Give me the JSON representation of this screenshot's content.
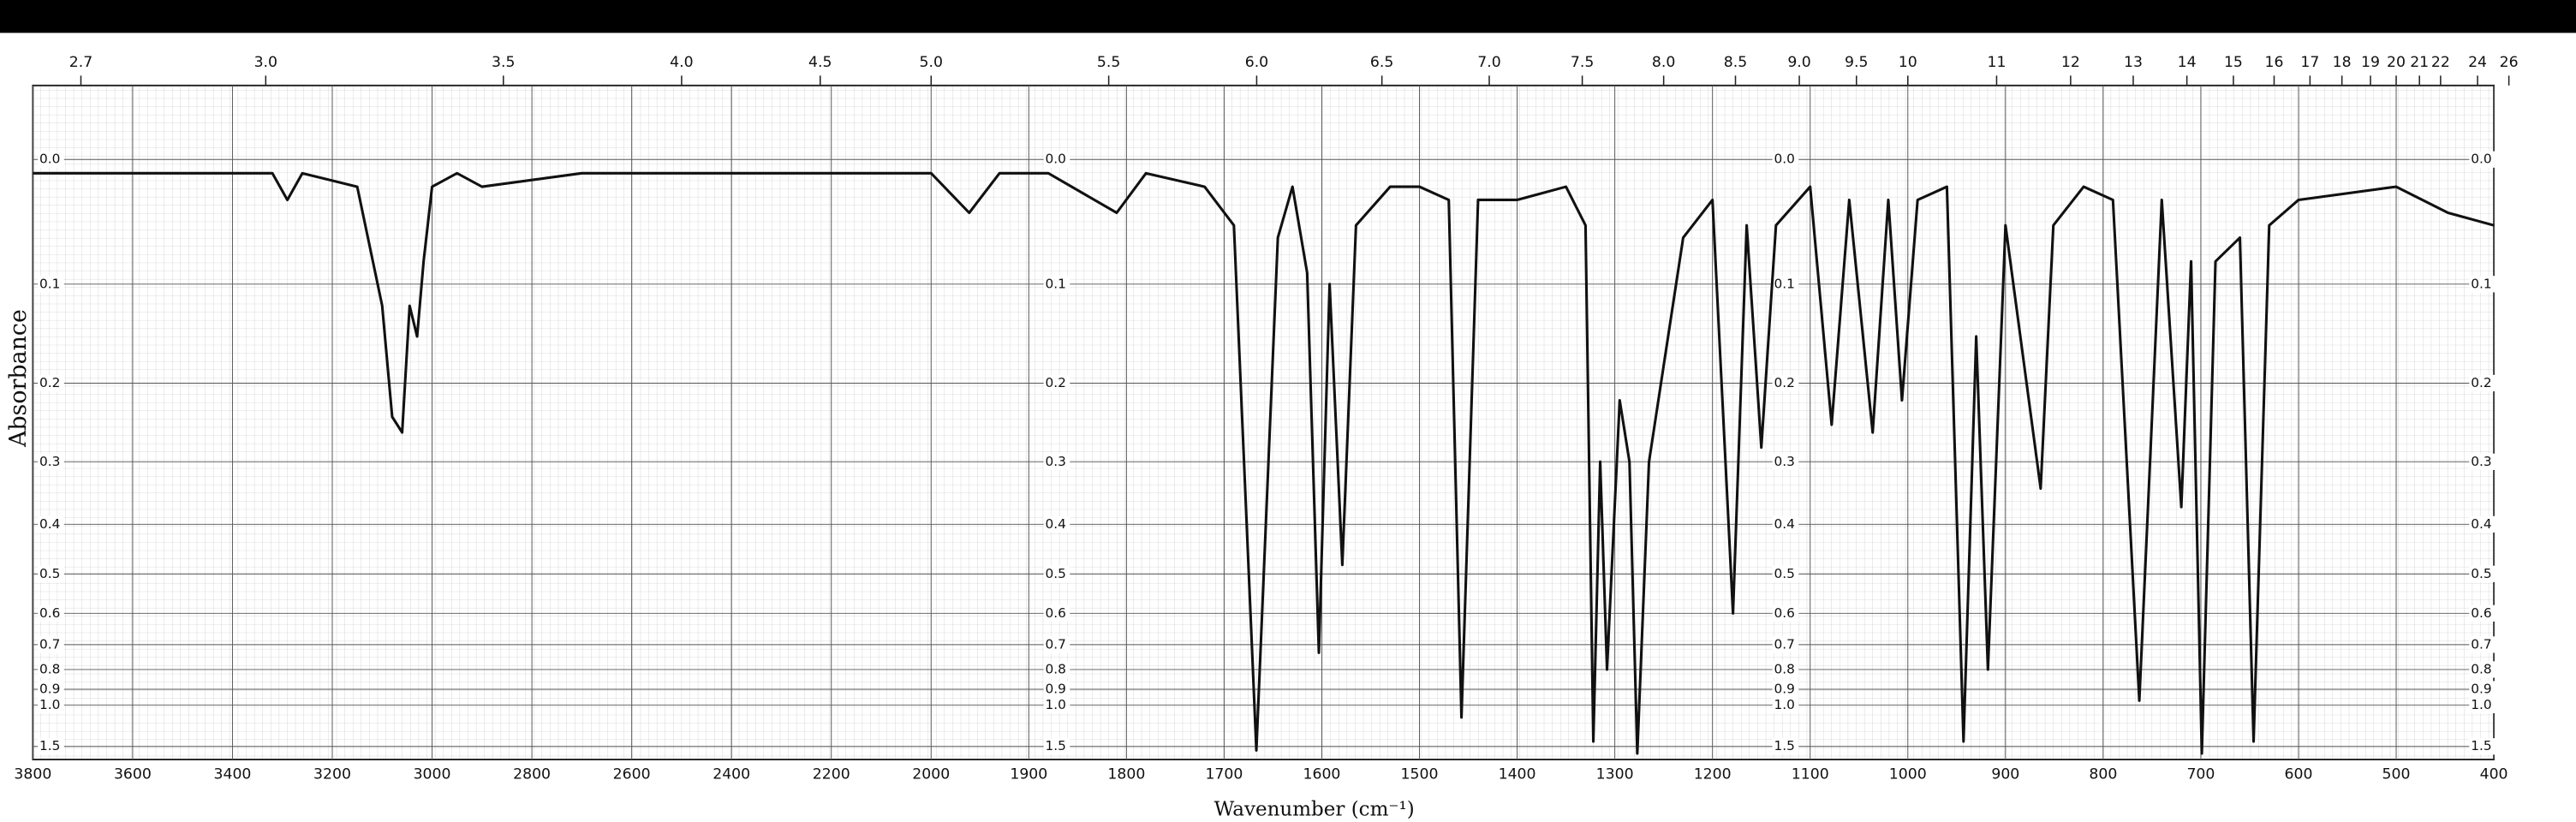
{
  "chart_data": {
    "type": "line",
    "y_label": "Absorbance",
    "x_label": "Wavenumber (cm⁻¹)",
    "color": "#111111",
    "grid": true,
    "yscale": "absorbance",
    "xbreak": 2000,
    "x2scale": "wavelength_um",
    "xlim": [
      3800,
      400
    ],
    "ylim": [
      -0.05,
      2
    ],
    "xticks": [
      3800,
      3600,
      3400,
      3200,
      3000,
      2800,
      2600,
      2400,
      2200,
      2000,
      1900,
      1800,
      1700,
      1600,
      1500,
      1400,
      1300,
      1200,
      1100,
      1000,
      900,
      800,
      700,
      600,
      500,
      400
    ],
    "x2ticks": [
      2.7,
      {
        "value": 3,
        "label": "3.0"
      },
      3.5,
      {
        "value": 4,
        "label": "4.0"
      },
      4.5,
      {
        "value": 5,
        "label": "5.0"
      },
      5.5,
      {
        "value": 6,
        "label": "6.0"
      },
      6.5,
      {
        "value": 7,
        "label": "7.0"
      },
      7.5,
      {
        "value": 8,
        "label": "8.0"
      },
      8.5,
      {
        "value": 9,
        "label": "9.0"
      },
      9.5,
      10,
      11,
      12,
      13,
      14,
      15,
      16,
      17,
      18,
      19,
      20,
      21,
      22,
      24,
      26
    ],
    "yticks": [
      {
        "value": 0,
        "label": "0.0"
      },
      0.1,
      0.2,
      0.3,
      0.4,
      0.5,
      0.6,
      0.7,
      0.8,
      0.9,
      {
        "value": 1,
        "label": "1.0"
      },
      1.5
    ],
    "x": [
      3800,
      3500,
      3320,
      3290,
      3260,
      3150,
      3100,
      3080,
      3060,
      3045,
      3030,
      3017,
      3000,
      2950,
      2900,
      2700,
      2500,
      2300,
      2100,
      2000,
      1961,
      1930,
      1880,
      1810,
      1780,
      1720,
      1690,
      1667,
      1645,
      1630,
      1615,
      1603,
      1592,
      1579,
      1565,
      1530,
      1500,
      1470,
      1457,
      1440,
      1400,
      1350,
      1330,
      1322,
      1315,
      1308,
      1295,
      1285,
      1277,
      1265,
      1230,
      1200,
      1179,
      1165,
      1150,
      1135,
      1100,
      1078,
      1060,
      1036,
      1020,
      1006,
      990,
      960,
      943,
      930,
      918,
      900,
      864,
      851,
      820,
      790,
      763,
      740,
      720,
      710,
      699,
      685,
      660,
      646,
      630,
      600,
      500,
      447,
      400
    ],
    "values": [
      0.01,
      0.01,
      0.01,
      0.03,
      0.01,
      0.02,
      0.12,
      0.24,
      0.26,
      0.12,
      0.15,
      0.08,
      0.02,
      0.01,
      0.02,
      0.01,
      0.01,
      0.01,
      0.01,
      0.01,
      0.04,
      0.01,
      0.01,
      0.04,
      0.01,
      0.02,
      0.05,
      1.6,
      0.06,
      0.02,
      0.09,
      0.73,
      0.1,
      0.48,
      0.05,
      0.02,
      0.02,
      0.03,
      1.1,
      0.03,
      0.03,
      0.02,
      0.05,
      1.4,
      0.3,
      0.8,
      0.22,
      0.3,
      1.7,
      0.3,
      0.06,
      0.03,
      0.6,
      0.05,
      0.28,
      0.05,
      0.02,
      0.25,
      0.03,
      0.26,
      0.03,
      0.22,
      0.03,
      0.02,
      1.4,
      0.15,
      0.8,
      0.05,
      0.34,
      0.05,
      0.02,
      0.03,
      0.97,
      0.03,
      0.37,
      0.08,
      1.7,
      0.08,
      0.06,
      1.4,
      0.05,
      0.03,
      0.02,
      0.04,
      0.05
    ]
  }
}
